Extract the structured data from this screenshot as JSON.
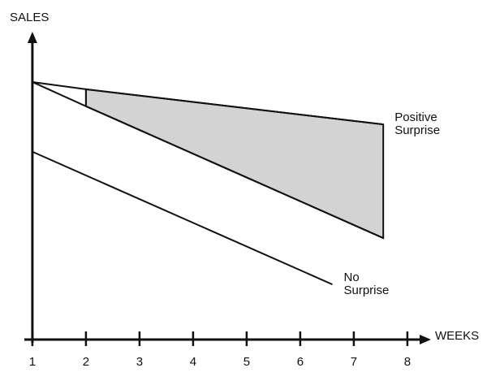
{
  "chart_data": {
    "type": "line",
    "ylabel": "SALES",
    "xlabel": "WEEKS",
    "xlim": [
      0.85,
      8.35
    ],
    "ylim": [
      0,
      100
    ],
    "xticks": [
      1,
      2,
      3,
      4,
      5,
      6,
      7,
      8
    ],
    "fill_color": "#d3d3d3",
    "series": [
      {
        "name": "Positive Surprise",
        "color": "#111111",
        "x": [
          1,
          2,
          7.55
        ],
        "values": [
          85,
          82.6,
          71
        ]
      },
      {
        "color": "#111111",
        "x": [
          1,
          2,
          7.55
        ],
        "values": [
          85,
          77,
          33.5
        ]
      },
      {
        "name": "No Surprise",
        "color": "#111111",
        "x": [
          1,
          6.6
        ],
        "values": [
          62,
          18.2
        ]
      }
    ]
  }
}
